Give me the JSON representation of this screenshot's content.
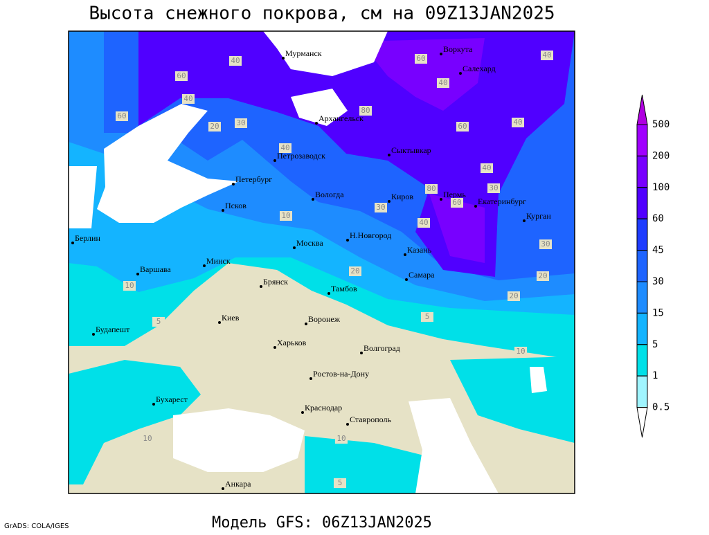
{
  "title": "Высота снежного покрова, см на 09Z13JAN2025",
  "footer": "Модель GFS: 06Z13JAN2025",
  "credit": "GrADS: COLA/IGES",
  "legend": {
    "levels": [
      500,
      200,
      100,
      60,
      45,
      30,
      15,
      5,
      1,
      0.5
    ],
    "colors": [
      "#b000e0",
      "#a000ff",
      "#7800ff",
      "#5000ff",
      "#1e3cff",
      "#1e64ff",
      "#1e8cff",
      "#14b4ff",
      "#00e0e8",
      "#a0f5ff",
      "#ffffff"
    ]
  },
  "cities": [
    "Мурманск",
    "Воркута",
    "Салехард",
    "Архангельск",
    "Сыктывкар",
    "Петрозаводск",
    "Петербург",
    "Вологда",
    "Киров",
    "Пермь",
    "Екатеринбург",
    "Курган",
    "Псков",
    "Н.Новгород",
    "Казань",
    "Москва",
    "Берлин",
    "Варшава",
    "Минск",
    "Брянск",
    "Тамбов",
    "Самара",
    "Киев",
    "Воронеж",
    "Будапешт",
    "Харьков",
    "Волгоград",
    "Ростов-на-Дону",
    "Бухарест",
    "Краснодар",
    "Ставрополь",
    "Анкара"
  ],
  "contour_labels": [
    40,
    60,
    40,
    60,
    20,
    30,
    40,
    40,
    80,
    60,
    80,
    60,
    40,
    40,
    60,
    40,
    30,
    20,
    30,
    40,
    10,
    10,
    5,
    10,
    5,
    30,
    20,
    20,
    10,
    10,
    5
  ]
}
